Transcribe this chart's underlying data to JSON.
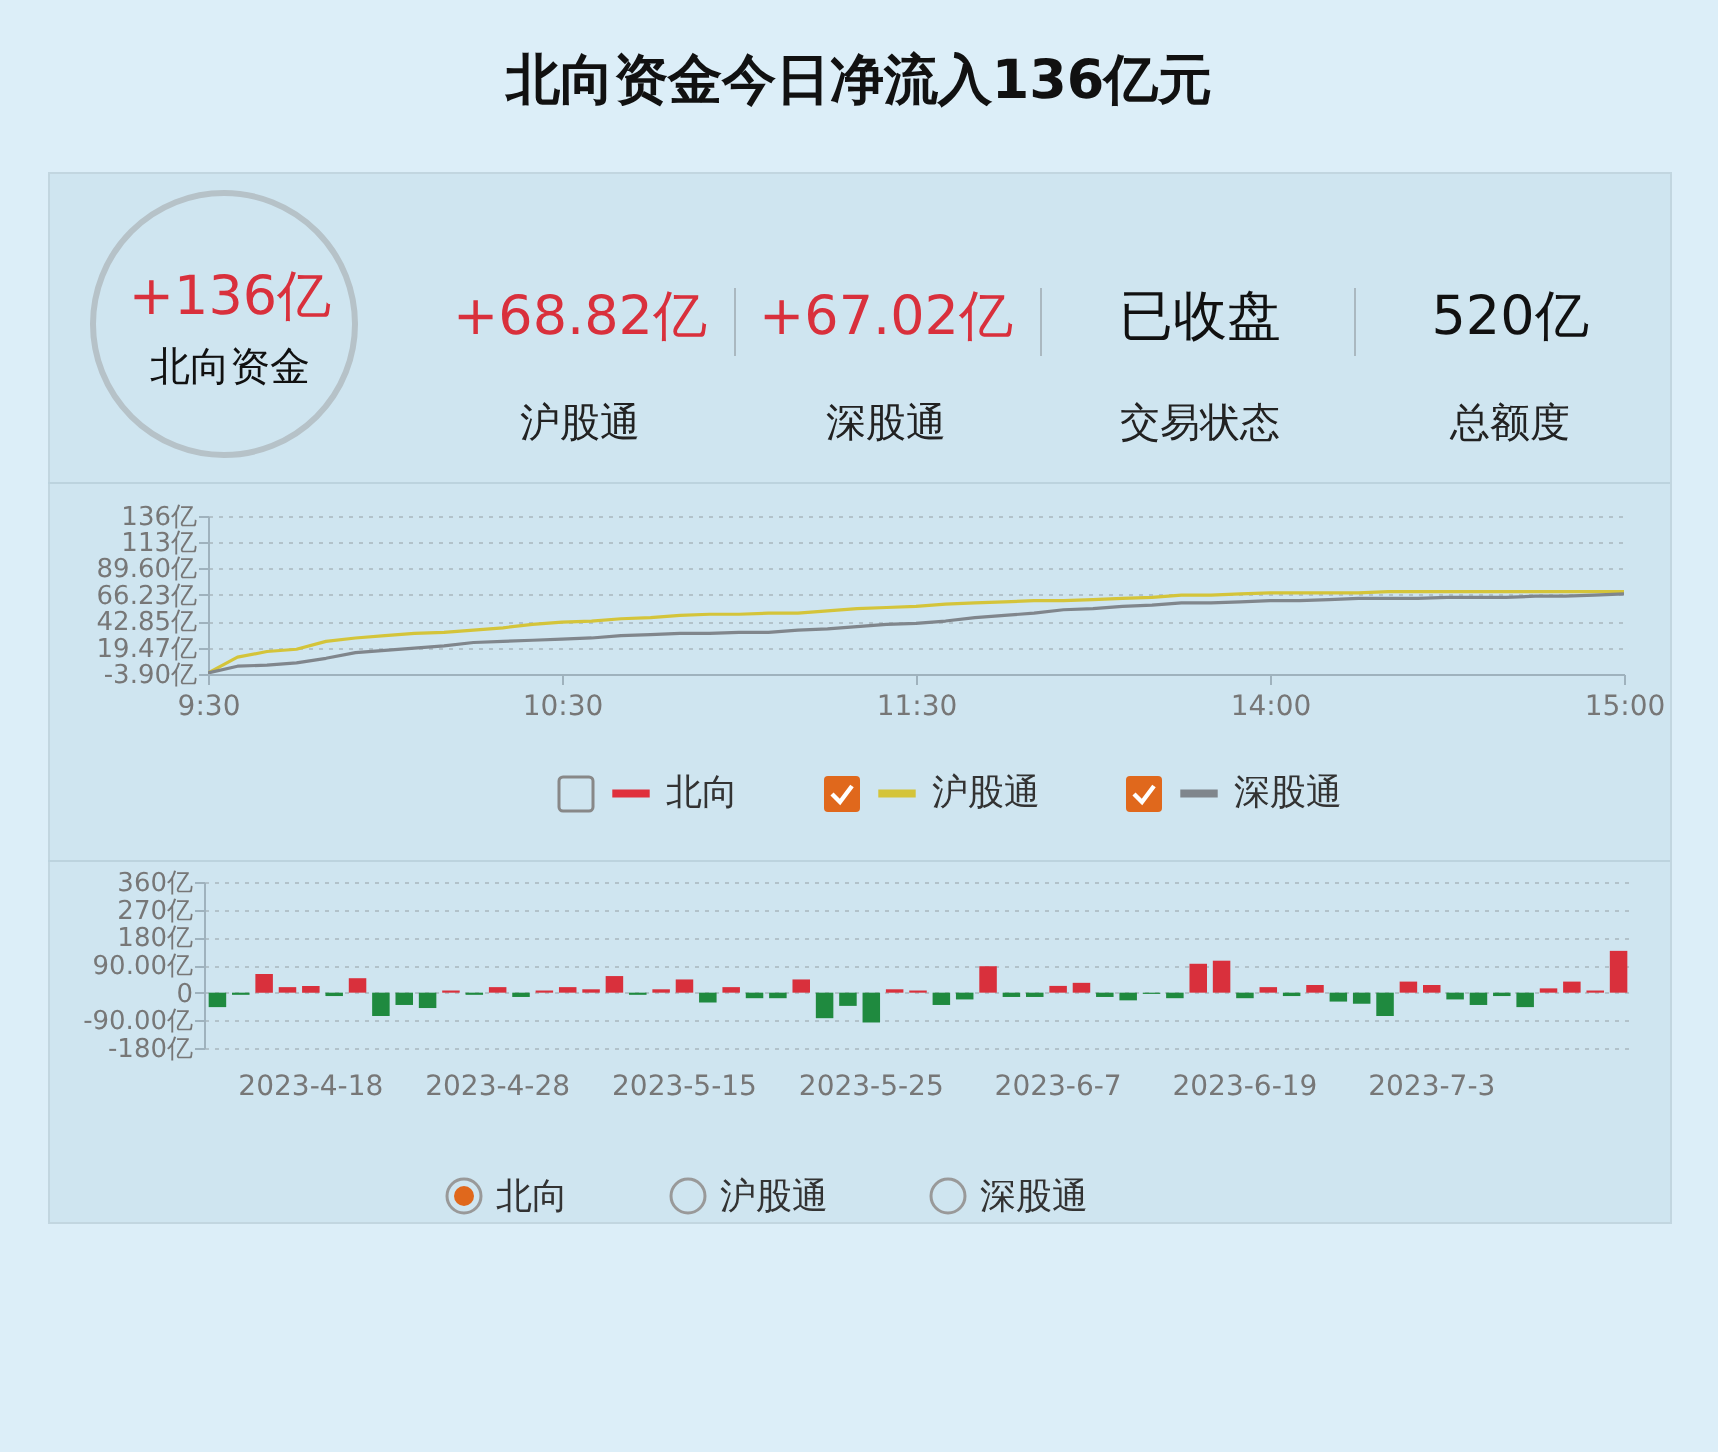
{
  "chart_data": [
    {
      "type": "other",
      "title": "北向资金今日净流入136亿元",
      "annotations": [
        "+136亿",
        "北向资金",
        "+68.82亿",
        "沪股通",
        "+67.02亿",
        "深股通",
        "已收盘",
        "交易状态",
        "520亿",
        "总额度"
      ]
    },
    {
      "type": "line",
      "categories": [
        "9:30",
        null,
        null,
        null,
        null,
        null,
        null,
        null,
        null,
        null,
        null,
        null,
        "10:30",
        null,
        null,
        null,
        null,
        null,
        null,
        null,
        null,
        null,
        null,
        null,
        "11:30",
        null,
        null,
        null,
        null,
        null,
        null,
        null,
        null,
        null,
        null,
        null,
        "14:00",
        null,
        null,
        null,
        null,
        null,
        null,
        null,
        null,
        null,
        null,
        null,
        "15:00"
      ],
      "ylim": [
        -3.9,
        136
      ],
      "yticks": [
        {
          "value": -3.9,
          "label": "-3.90亿"
        },
        {
          "value": 19.47,
          "label": "19.47亿"
        },
        {
          "value": 42.85,
          "label": "42.85亿"
        },
        {
          "value": 66.23,
          "label": "66.23亿"
        },
        {
          "value": 89.6,
          "label": "89.60亿"
        },
        {
          "value": 113,
          "label": "113亿"
        },
        {
          "value": 136,
          "label": "136亿"
        }
      ],
      "grid": "y",
      "legend": "bottom",
      "series": [
        {
          "name": "北向",
          "color": "#e0303c",
          "values": [
            null,
            null,
            null,
            null,
            null,
            null,
            null,
            null,
            null,
            null,
            null,
            null,
            null,
            null,
            null,
            null,
            null,
            null,
            null,
            null,
            null,
            null,
            null,
            null,
            null,
            null,
            null,
            null,
            null,
            null,
            null,
            null,
            null,
            null,
            null,
            null,
            null,
            null,
            null,
            null,
            null,
            null,
            null,
            null,
            null,
            null,
            null,
            null,
            null
          ]
        },
        {
          "name": "沪股通",
          "color": "#d4c43a",
          "values": [
            -3,
            11,
            16,
            18,
            25,
            28,
            30,
            32,
            33,
            35,
            37,
            40,
            42,
            43,
            45,
            46,
            48,
            49,
            49,
            50,
            50,
            52,
            54,
            55,
            56,
            58,
            59,
            60,
            61,
            61,
            62,
            63,
            64,
            66,
            66,
            67,
            68,
            68,
            68,
            68,
            69,
            69,
            69,
            69,
            69,
            69,
            69,
            69,
            69
          ]
        },
        {
          "name": "深股通",
          "color": "#80868c",
          "values": [
            -3,
            3,
            4,
            6,
            10,
            15,
            17,
            19,
            21,
            24,
            25,
            26,
            27,
            28,
            30,
            31,
            32,
            32,
            33,
            33,
            35,
            36,
            38,
            40,
            41,
            43,
            46,
            48,
            50,
            53,
            54,
            56,
            57,
            59,
            59,
            60,
            61,
            61,
            62,
            63,
            63,
            63,
            64,
            64,
            64,
            65,
            65,
            66,
            67
          ]
        }
      ]
    },
    {
      "type": "bar",
      "categories": [
        null,
        null,
        null,
        null,
        "2023-4-18",
        null,
        null,
        null,
        null,
        null,
        null,
        null,
        "2023-4-28",
        null,
        null,
        null,
        null,
        null,
        null,
        null,
        "2023-5-15",
        null,
        null,
        null,
        null,
        null,
        null,
        null,
        "2023-5-25",
        null,
        null,
        null,
        null,
        null,
        null,
        null,
        "2023-6-7",
        null,
        null,
        null,
        null,
        null,
        null,
        null,
        "2023-6-19",
        null,
        null,
        null,
        null,
        null,
        null,
        null,
        "2023-7-3",
        null,
        null,
        null,
        null,
        null,
        null,
        null,
        null
      ],
      "values": [
        -47,
        -7,
        61,
        18,
        22,
        -11,
        47,
        -76,
        -40,
        -50,
        7,
        -7,
        18,
        -14,
        7,
        18,
        11,
        54,
        -7,
        11,
        43,
        -32,
        18,
        -18,
        -18,
        43,
        -83,
        -43,
        -97,
        11,
        7,
        -40,
        -22,
        86,
        -14,
        -14,
        22,
        32,
        -14,
        -25,
        -4,
        -18,
        94,
        104,
        -18,
        18,
        -11,
        25,
        -29,
        -36,
        -76,
        36,
        25,
        -22,
        -40,
        -11,
        -47,
        14,
        36,
        7,
        136
      ],
      "colors": [
        "#1f8a3f",
        "#1f8a3f",
        "#d9303c",
        "#d9303c",
        "#d9303c",
        "#1f8a3f",
        "#d9303c",
        "#1f8a3f",
        "#1f8a3f",
        "#1f8a3f",
        "#d9303c",
        "#1f8a3f",
        "#d9303c",
        "#1f8a3f",
        "#d9303c",
        "#d9303c",
        "#d9303c",
        "#d9303c",
        "#1f8a3f",
        "#d9303c",
        "#d9303c",
        "#1f8a3f",
        "#d9303c",
        "#1f8a3f",
        "#1f8a3f",
        "#d9303c",
        "#1f8a3f",
        "#1f8a3f",
        "#1f8a3f",
        "#d9303c",
        "#d9303c",
        "#1f8a3f",
        "#1f8a3f",
        "#d9303c",
        "#1f8a3f",
        "#1f8a3f",
        "#d9303c",
        "#d9303c",
        "#1f8a3f",
        "#1f8a3f",
        "#1f8a3f",
        "#1f8a3f",
        "#d9303c",
        "#d9303c",
        "#1f8a3f",
        "#d9303c",
        "#1f8a3f",
        "#d9303c",
        "#1f8a3f",
        "#1f8a3f",
        "#1f8a3f",
        "#d9303c",
        "#d9303c",
        "#1f8a3f",
        "#1f8a3f",
        "#1f8a3f",
        "#1f8a3f",
        "#d9303c",
        "#d9303c",
        "#d9303c",
        "#d9303c"
      ],
      "ylim": [
        -180,
        360
      ],
      "yticks": [
        {
          "value": -180,
          "label": "-180亿"
        },
        {
          "value": -90,
          "label": "-90.00亿"
        },
        0,
        {
          "value": 90,
          "label": "90.00亿"
        },
        {
          "value": 180,
          "label": "180亿"
        },
        {
          "value": 270,
          "label": "270亿"
        },
        {
          "value": 360,
          "label": "360亿"
        }
      ],
      "grid": "y",
      "annotations": [
        "北向",
        "沪股通",
        "深股通"
      ]
    }
  ]
}
